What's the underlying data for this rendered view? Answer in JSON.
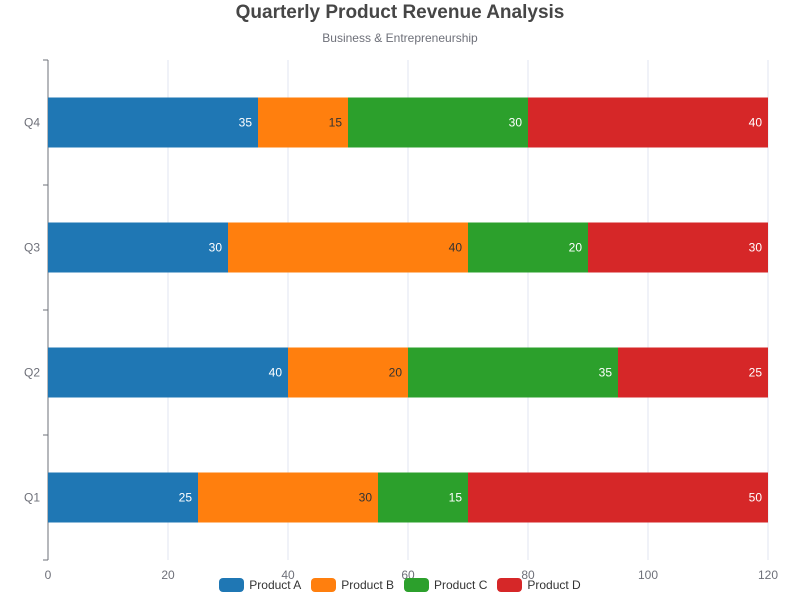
{
  "chart_data": {
    "type": "bar",
    "orientation": "horizontal",
    "stacked": true,
    "title": "Quarterly Product Revenue Analysis",
    "subtitle": "Business & Entrepreneurship",
    "categories": [
      "Q1",
      "Q2",
      "Q3",
      "Q4"
    ],
    "series": [
      {
        "name": "Product A",
        "color": "#1f77b4",
        "values": [
          25,
          40,
          30,
          35
        ]
      },
      {
        "name": "Product B",
        "color": "#ff7f0e",
        "values": [
          30,
          20,
          40,
          15
        ]
      },
      {
        "name": "Product C",
        "color": "#2ca02c",
        "values": [
          15,
          35,
          20,
          30
        ]
      },
      {
        "name": "Product D",
        "color": "#d62728",
        "values": [
          50,
          25,
          30,
          40
        ]
      }
    ],
    "xlim": [
      0,
      120
    ],
    "xticks": [
      0,
      20,
      40,
      60,
      80,
      100,
      120
    ],
    "grid": true,
    "legend_position": "bottom"
  }
}
